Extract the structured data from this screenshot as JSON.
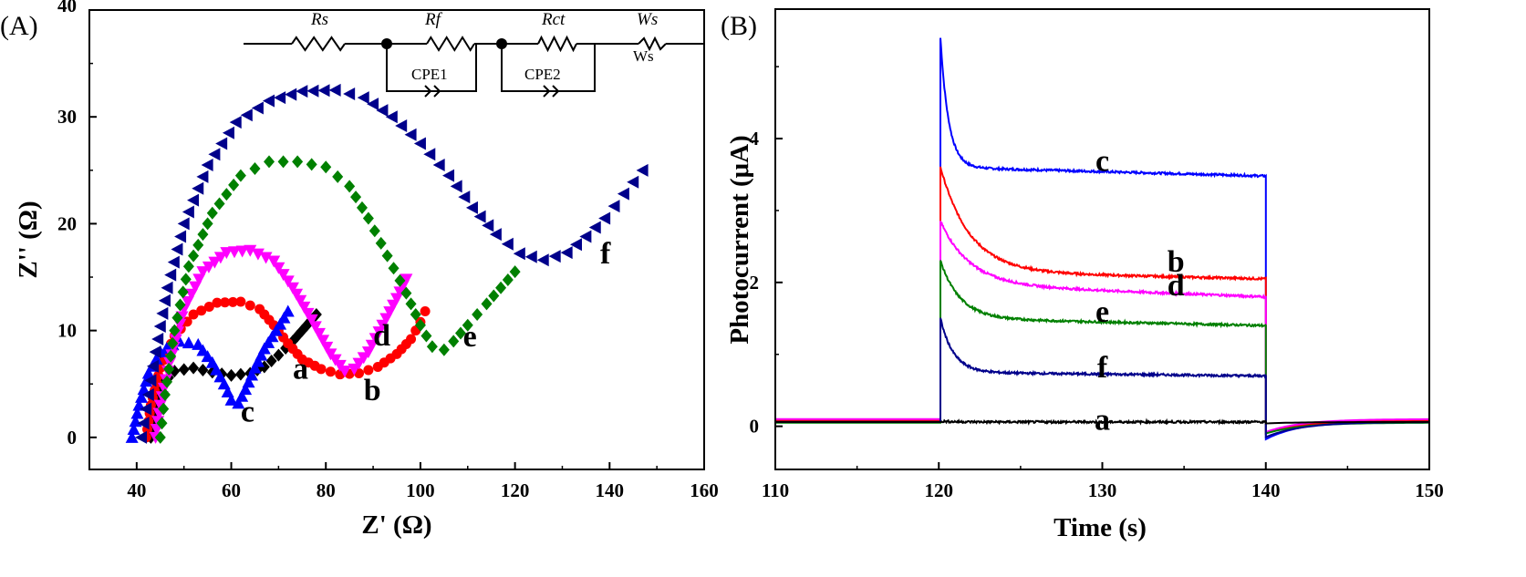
{
  "chart_data": [
    {
      "type": "scatter",
      "panel_label": "(A)",
      "xlabel": "Z' (Ω)",
      "ylabel": "Z'' (Ω)",
      "xlim": [
        30,
        160
      ],
      "ylim": [
        -3,
        40
      ],
      "xticks": [
        40,
        60,
        80,
        100,
        120,
        140,
        160
      ],
      "yticks": [
        0,
        10,
        20,
        30,
        40
      ],
      "xtick_labels": [
        "40",
        "60",
        "80",
        "100",
        "120",
        "140",
        "160"
      ],
      "ytick_labels": [
        "0",
        "10",
        "20",
        "30",
        "40"
      ],
      "grid": false,
      "circuit": {
        "elements": [
          "Rs",
          "Rf",
          "Rct",
          "Ws"
        ],
        "cpe_labels": [
          "CPE1",
          "CPE2"
        ],
        "warburg_label": "Ws"
      },
      "series": [
        {
          "name": "a",
          "color": "#000000",
          "marker": "diamond",
          "points": [
            [
              43,
              0
            ],
            [
              44,
              3
            ],
            [
              45.5,
              5
            ],
            [
              48,
              6.2
            ],
            [
              52,
              6.5
            ],
            [
              56,
              6.1
            ],
            [
              60,
              5.8
            ],
            [
              64,
              6
            ],
            [
              67,
              6.6
            ],
            [
              70,
              7.7
            ],
            [
              73,
              9
            ],
            [
              76,
              10.5
            ],
            [
              78,
              11.5
            ]
          ],
          "label_pos": [
            73,
            5.5
          ]
        },
        {
          "name": "b",
          "color": "#ff0000",
          "marker": "circle",
          "points": [
            [
              42,
              0
            ],
            [
              43,
              3
            ],
            [
              45,
              6.5
            ],
            [
              48,
              9.5
            ],
            [
              52,
              11.5
            ],
            [
              57,
              12.6
            ],
            [
              62,
              12.7
            ],
            [
              66,
              12
            ],
            [
              69,
              10.5
            ],
            [
              72,
              8.8
            ],
            [
              75,
              7.3
            ],
            [
              79,
              6.4
            ],
            [
              83,
              5.9
            ],
            [
              87,
              6
            ],
            [
              91,
              6.6
            ],
            [
              95,
              7.8
            ],
            [
              98,
              9.2
            ],
            [
              100,
              10.8
            ],
            [
              101,
              11.8
            ]
          ],
          "label_pos": [
            88,
            3.5
          ]
        },
        {
          "name": "c",
          "color": "#0000ff",
          "marker": "triangle-up",
          "points": [
            [
              39,
              0
            ],
            [
              40.5,
              3
            ],
            [
              42.5,
              6
            ],
            [
              45,
              8
            ],
            [
              49,
              9
            ],
            [
              53,
              8.7
            ],
            [
              56,
              7
            ],
            [
              58.5,
              5
            ],
            [
              60,
              3.5
            ],
            [
              61.5,
              3.2
            ],
            [
              63,
              4.5
            ],
            [
              65,
              6.5
            ],
            [
              67,
              8.3
            ],
            [
              69.5,
              10
            ],
            [
              72,
              11.8
            ]
          ],
          "label_pos": [
            62,
            1.5
          ]
        },
        {
          "name": "d",
          "color": "#ff00ff",
          "marker": "triangle-down",
          "points": [
            [
              44,
              0
            ],
            [
              45,
              3
            ],
            [
              47,
              7
            ],
            [
              50,
              12
            ],
            [
              54,
              15.5
            ],
            [
              59,
              17.3
            ],
            [
              64,
              17.5
            ],
            [
              69,
              16.5
            ],
            [
              73,
              14
            ],
            [
              77,
              11
            ],
            [
              81,
              7.8
            ],
            [
              84,
              6.2
            ],
            [
              86,
              6.4
            ],
            [
              89,
              8
            ],
            [
              92,
              10.5
            ],
            [
              95,
              13
            ],
            [
              97,
              14.8
            ]
          ],
          "label_pos": [
            90,
            8.6
          ]
        },
        {
          "name": "e",
          "color": "#008000",
          "marker": "diamond",
          "points": [
            [
              45,
              0
            ],
            [
              46,
              4
            ],
            [
              48,
              10
            ],
            [
              51,
              16
            ],
            [
              56,
              21
            ],
            [
              62,
              24.5
            ],
            [
              68,
              25.8
            ],
            [
              74,
              25.8
            ],
            [
              80,
              25.3
            ],
            [
              85,
              23.5
            ],
            [
              89,
              20.5
            ],
            [
              93,
              17
            ],
            [
              97,
              13.5
            ],
            [
              100,
              10.5
            ],
            [
              102.5,
              8.5
            ],
            [
              105,
              8.2
            ],
            [
              107,
              9
            ],
            [
              110,
              10.5
            ],
            [
              114,
              12.5
            ],
            [
              117,
              14
            ],
            [
              120,
              15.5
            ]
          ],
          "label_pos": [
            109,
            8.5
          ]
        },
        {
          "name": "f",
          "color": "#00008b",
          "marker": "triangle-left",
          "points": [
            [
              41,
              0
            ],
            [
              42.5,
              4
            ],
            [
              44,
              8
            ],
            [
              46.5,
              14
            ],
            [
              50,
              20
            ],
            [
              55,
              25.5
            ],
            [
              61,
              29.5
            ],
            [
              68,
              31.5
            ],
            [
              75,
              32.4
            ],
            [
              82,
              32.5
            ],
            [
              88,
              31.8
            ],
            [
              94,
              30
            ],
            [
              100,
              27.5
            ],
            [
              106,
              24.5
            ],
            [
              111,
              21.5
            ],
            [
              116,
              19
            ],
            [
              121,
              17.2
            ],
            [
              126,
              16.6
            ],
            [
              131,
              17.3
            ],
            [
              135,
              18.8
            ],
            [
              139,
              20.5
            ],
            [
              143,
              22.8
            ],
            [
              147,
              25
            ]
          ],
          "label_pos": [
            138,
            16.3
          ]
        }
      ]
    },
    {
      "type": "line",
      "panel_label": "(B)",
      "xlabel": "Time (s)",
      "ylabel": "Photocurrent (μA)",
      "xlim": [
        110,
        150
      ],
      "ylim": [
        -0.6,
        5.8
      ],
      "xticks": [
        110,
        120,
        130,
        140,
        150
      ],
      "yticks": [
        0,
        2,
        4
      ],
      "xtick_labels": [
        "110",
        "120",
        "130",
        "140",
        "150"
      ],
      "ytick_labels": [
        "0",
        "2",
        "4"
      ],
      "grid": false,
      "light_on": 120.1,
      "light_off": 140,
      "series": [
        {
          "name": "c",
          "color": "#0000ff",
          "baseline": 0.08,
          "peak": 5.4,
          "steady": 3.6,
          "end": 3.48,
          "tau": 0.5,
          "undershoot": -0.18,
          "label_pos": [
            130,
            3.55
          ]
        },
        {
          "name": "b",
          "color": "#ff0000",
          "baseline": 0.08,
          "peak": 3.6,
          "steady": 2.15,
          "end": 2.05,
          "tau": 1.8,
          "undershoot": -0.1,
          "label_pos": [
            134.5,
            2.15
          ]
        },
        {
          "name": "d",
          "color": "#ff00ff",
          "baseline": 0.1,
          "peak": 2.85,
          "steady": 1.97,
          "end": 1.8,
          "tau": 1.8,
          "undershoot": -0.08,
          "label_pos": [
            134.5,
            1.82
          ]
        },
        {
          "name": "e",
          "color": "#008000",
          "baseline": 0.05,
          "peak": 2.3,
          "steady": 1.5,
          "end": 1.4,
          "tau": 1.2,
          "undershoot": -0.1,
          "label_pos": [
            130,
            1.45
          ]
        },
        {
          "name": "f",
          "color": "#00008b",
          "baseline": 0.06,
          "peak": 1.5,
          "steady": 0.75,
          "end": 0.7,
          "tau": 0.8,
          "undershoot": -0.15,
          "label_pos": [
            130,
            0.68
          ]
        },
        {
          "name": "a",
          "color": "#000000",
          "baseline": 0.06,
          "peak": 0.07,
          "steady": 0.06,
          "end": 0.06,
          "tau": 1,
          "undershoot": 0.04,
          "label_pos": [
            130,
            -0.05
          ]
        }
      ]
    }
  ]
}
